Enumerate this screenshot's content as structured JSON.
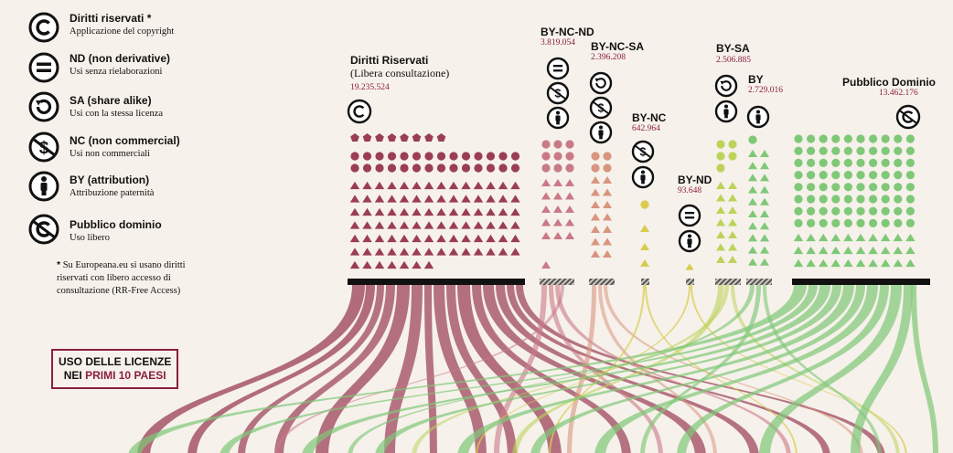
{
  "legend": [
    {
      "title": "Diritti riservati *",
      "sub": "Applicazione del copyright",
      "icon": "copyright-icon"
    },
    {
      "title": "ND (non derivative)",
      "sub": "Usi senza rielaborazioni",
      "icon": "equals-icon"
    },
    {
      "title": "SA (share alike)",
      "sub": "Usi con la stessa licenza",
      "icon": "share-alike-icon"
    },
    {
      "title": "NC (non commercial)",
      "sub": "Usi non commerciali",
      "icon": "non-commercial-icon"
    },
    {
      "title": "BY (attribution)",
      "sub": "Attribuzione paternità",
      "icon": "attribution-icon"
    },
    {
      "title": "Pubblico dominio",
      "sub": "Uso libero",
      "icon": "public-domain-icon"
    }
  ],
  "note": {
    "star": "*",
    "lines": [
      "Su Europeana.eu si usano diritti",
      "riservati con libero accesso di",
      "consultazione (RR-Free Access)"
    ]
  },
  "boxlabel": {
    "line1": "USO DELLE LICENZE",
    "line2_a": "NEI ",
    "line2_b": "PRIMI 10 PAESI"
  },
  "categories": [
    {
      "key": "dr",
      "title": "Diritti Riservati",
      "sub": "(Libera consultazione)",
      "value": "19.235.524"
    },
    {
      "key": "byncnd",
      "title": "BY-NC-ND",
      "value": "3.819.054"
    },
    {
      "key": "byncsa",
      "title": "BY-NC-SA",
      "value": "2.396.208"
    },
    {
      "key": "bync",
      "title": "BY-NC",
      "value": "642.964"
    },
    {
      "key": "bynd",
      "title": "BY-ND",
      "value": "93.648"
    },
    {
      "key": "bysa",
      "title": "BY-SA",
      "value": "2.506.885"
    },
    {
      "key": "by",
      "title": "BY",
      "value": "2.729.016"
    },
    {
      "key": "pd",
      "title": "Pubblico Dominio",
      "value": "13.462.176"
    }
  ],
  "colors": {
    "bg": "#f6f1ea",
    "maroon": "#9a3d55",
    "pink": "#c97a86",
    "salmon": "#d99580",
    "yellow": "#d8cc50",
    "lime": "#bcd35a",
    "green": "#7fc878",
    "accent": "#8b1e3f"
  }
}
